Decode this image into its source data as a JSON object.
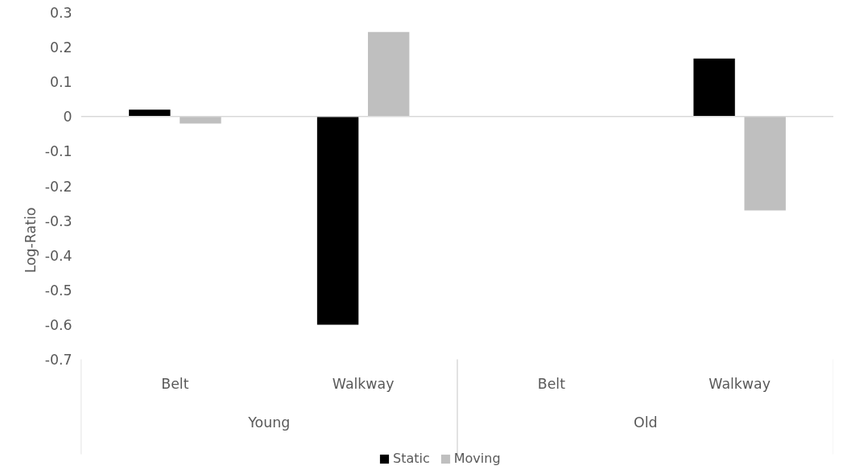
{
  "chart_data": {
    "type": "bar",
    "ylabel": "Log-Ratio",
    "categories": [
      "Belt",
      "Walkway",
      "Belt",
      "Walkway"
    ],
    "annotations": [
      "Young",
      "Old"
    ],
    "series": [
      {
        "name": "Static",
        "color": "#000000",
        "values": [
          0.02,
          -0.6,
          0,
          0.167
        ]
      },
      {
        "name": "Moving",
        "color": "#bfbfbf",
        "values": [
          -0.02,
          0.244,
          0,
          -0.271
        ]
      }
    ],
    "ylim": [
      -0.7,
      0.3
    ],
    "yticks": [
      {
        "value": -0.7,
        "label": "-0.7"
      },
      {
        "value": -0.6,
        "label": "-0.6"
      },
      {
        "value": -0.5,
        "label": "-0.5"
      },
      {
        "value": -0.4,
        "label": "-0.4"
      },
      {
        "value": -0.3,
        "label": "-0.3"
      },
      {
        "value": -0.2,
        "label": "-0.2"
      },
      {
        "value": -0.1,
        "label": "-0.1"
      },
      {
        "value": 0,
        "label": "0"
      },
      {
        "value": 0.1,
        "label": "0.1"
      },
      {
        "value": 0.2,
        "label": "0.2"
      },
      {
        "value": 0.3,
        "label": "0.3"
      }
    ],
    "ref_lines": [
      {
        "axis": "y",
        "value": 0,
        "color": "#d9d9d9"
      }
    ],
    "grid": false,
    "legend": "bottom"
  }
}
